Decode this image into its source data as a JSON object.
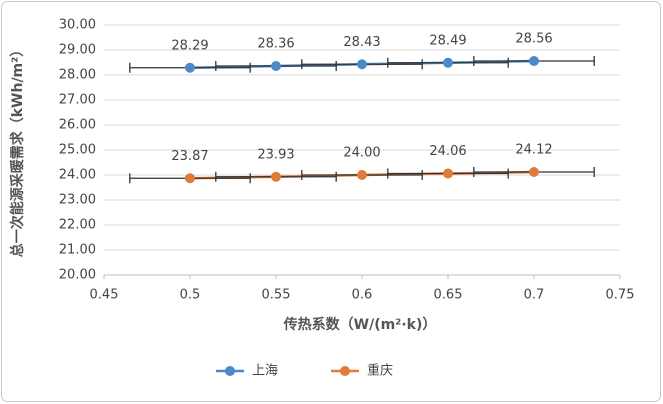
{
  "chart_data": {
    "type": "line",
    "x_label": "传热系数（W/(m²·k)）",
    "y_label": "总一次能源采暖需求（kWh/m²）",
    "x": [
      0.5,
      0.55,
      0.6,
      0.65,
      0.7
    ],
    "series": [
      {
        "name": "上海",
        "color": "#4a8ac9",
        "values": [
          28.29,
          28.36,
          28.43,
          28.49,
          28.56
        ],
        "value_labels": [
          "28.29",
          "28.36",
          "28.43",
          "28.49",
          "28.56"
        ],
        "xerr": [
          0.035,
          0.035,
          0.035,
          0.035,
          0.035
        ]
      },
      {
        "name": "重庆",
        "color": "#e07b39",
        "values": [
          23.87,
          23.93,
          24.0,
          24.06,
          24.12
        ],
        "value_labels": [
          "23.87",
          "23.93",
          "24.00",
          "24.06",
          "24.12"
        ],
        "xerr": [
          0.035,
          0.035,
          0.035,
          0.035,
          0.035
        ]
      }
    ],
    "error_bar_color": "#333333",
    "xlim": [
      0.45,
      0.75
    ],
    "xticks": [
      0.45,
      0.5,
      0.55,
      0.6,
      0.65,
      0.7,
      0.75
    ],
    "ylim": [
      20,
      30
    ],
    "yticks": [
      {
        "value": 20,
        "label": "20.00"
      },
      {
        "value": 21,
        "label": "21.00"
      },
      {
        "value": 22,
        "label": "22.00"
      },
      {
        "value": 23,
        "label": "23.00"
      },
      {
        "value": 24,
        "label": "24.00"
      },
      {
        "value": 25,
        "label": "25.00"
      },
      {
        "value": 26,
        "label": "26.00"
      },
      {
        "value": 27,
        "label": "27.00"
      },
      {
        "value": 28,
        "label": "28.00"
      },
      {
        "value": 29,
        "label": "29.00"
      },
      {
        "value": 30,
        "label": "30.00"
      }
    ],
    "grid": true,
    "legend": "bottom"
  }
}
